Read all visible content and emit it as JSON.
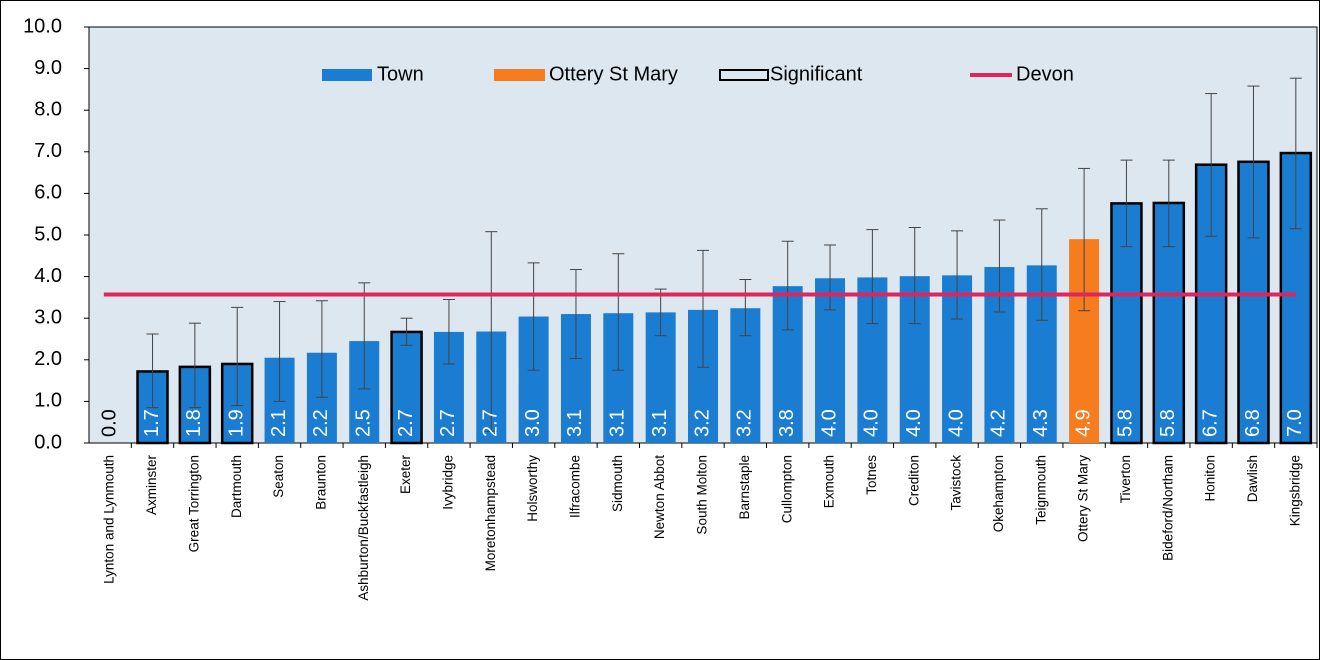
{
  "chart_data": {
    "type": "bar",
    "categories": [
      "Lynton and Lynmouth",
      "Axminster",
      "Great Torrington",
      "Dartmouth",
      "Seaton",
      "Braunton",
      "Ashburton/Buckfastleigh",
      "Exeter",
      "Ivybridge",
      "Moretonhampstead",
      "Holsworthy",
      "Ilfracombe",
      "Sidmouth",
      "Newton Abbot",
      "South Molton",
      "Barnstaple",
      "Cullompton",
      "Exmouth",
      "Totnes",
      "Crediton",
      "Tavistock",
      "Okehampton",
      "Teignmouth",
      "Ottery St Mary",
      "Tiverton",
      "Bideford/Northam",
      "Honiton",
      "Dawlish",
      "Kingsbridge"
    ],
    "values": [
      0,
      1.72,
      1.83,
      1.9,
      2.05,
      2.17,
      2.45,
      2.67,
      2.67,
      2.68,
      3.04,
      3.1,
      3.12,
      3.14,
      3.2,
      3.24,
      3.77,
      3.96,
      3.98,
      4.01,
      4.03,
      4.23,
      4.27,
      4.9,
      5.76,
      5.77,
      6.69,
      6.76,
      6.97
    ],
    "value_labels": [
      "0.0",
      "1.7",
      "1.8",
      "1.9",
      "2.1",
      "2.2",
      "2.5",
      "2.7",
      "2.7",
      "2.7",
      "3.0",
      "3.1",
      "3.1",
      "3.1",
      "3.2",
      "3.2",
      "3.8",
      "4.0",
      "4.0",
      "4.0",
      "4.0",
      "4.2",
      "4.3",
      "4.9",
      "5.8",
      "5.8",
      "6.7",
      "6.8",
      "7.0"
    ],
    "errors": [
      null,
      [
        0.85,
        2.62
      ],
      [
        0.85,
        2.88
      ],
      [
        0.9,
        3.26
      ],
      [
        1.0,
        3.4
      ],
      [
        1.1,
        3.42
      ],
      [
        1.3,
        3.85
      ],
      [
        2.35,
        3.0
      ],
      [
        1.9,
        3.45
      ],
      [
        0.28,
        5.08
      ],
      [
        1.75,
        4.33
      ],
      [
        2.03,
        4.17
      ],
      [
        1.75,
        4.55
      ],
      [
        2.58,
        3.7
      ],
      [
        1.82,
        4.63
      ],
      [
        2.58,
        3.93
      ],
      [
        2.72,
        4.85
      ],
      [
        3.2,
        4.76
      ],
      [
        2.87,
        5.13
      ],
      [
        2.87,
        5.18
      ],
      [
        2.98,
        5.1
      ],
      [
        3.15,
        5.36
      ],
      [
        2.95,
        5.63
      ],
      [
        3.18,
        6.6
      ],
      [
        4.72,
        6.8
      ],
      [
        4.72,
        6.8
      ],
      [
        4.97,
        8.4
      ],
      [
        4.93,
        8.58
      ],
      [
        5.15,
        8.77
      ]
    ],
    "significant": [
      false,
      true,
      true,
      true,
      false,
      false,
      false,
      true,
      false,
      false,
      false,
      false,
      false,
      false,
      false,
      false,
      false,
      false,
      false,
      false,
      false,
      false,
      false,
      false,
      true,
      true,
      true,
      true,
      true
    ],
    "legend": {
      "town": {
        "name": "Town",
        "color": "#1a7dd1"
      },
      "highlight": {
        "name": "Ottery St Mary",
        "color": "#f57c1f"
      },
      "significant": {
        "name": "Significant",
        "color": "#000000"
      },
      "reference": {
        "name": "Devon",
        "color": "#e0245e",
        "value": 3.57
      }
    },
    "ylim": [
      0,
      10
    ],
    "yticks": [
      {
        "value": 0,
        "label": "0.0"
      },
      {
        "value": 1,
        "label": "1.0"
      },
      {
        "value": 2,
        "label": "2.0"
      },
      {
        "value": 3,
        "label": "3.0"
      },
      {
        "value": 4,
        "label": "4.0"
      },
      {
        "value": 5,
        "label": "5.0"
      },
      {
        "value": 6,
        "label": "6.0"
      },
      {
        "value": 7,
        "label": "7.0"
      },
      {
        "value": 8,
        "label": "8.0"
      },
      {
        "value": 9,
        "label": "9.0"
      },
      {
        "value": 10,
        "label": "10.0"
      }
    ],
    "plot_background": "#dde7ef"
  }
}
